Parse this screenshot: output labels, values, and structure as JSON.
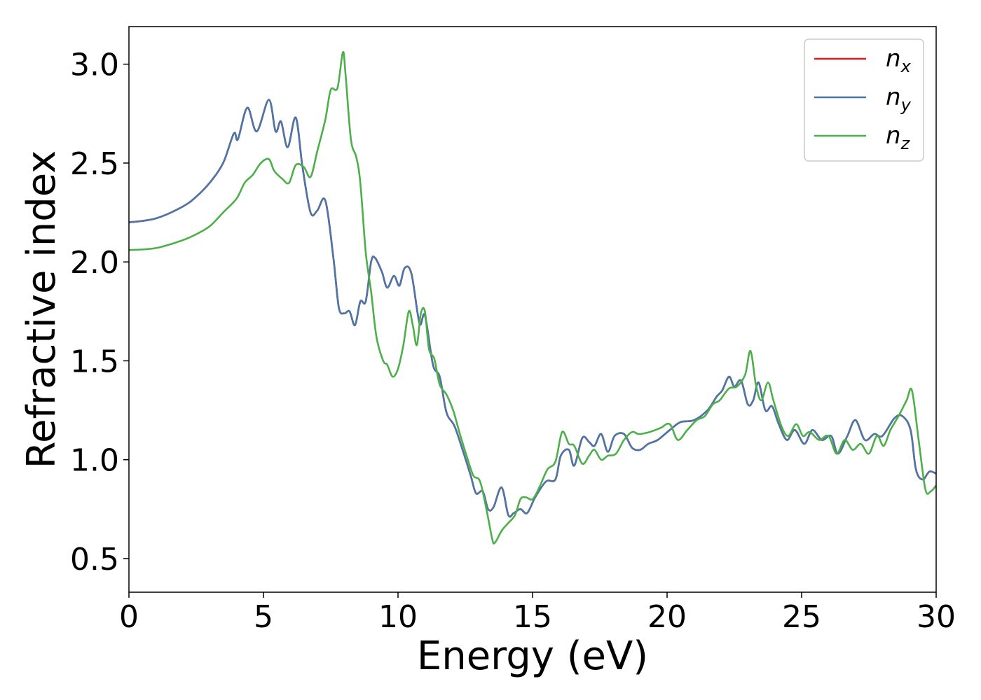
{
  "chart_data": {
    "type": "line",
    "xlabel": "Energy (eV)",
    "ylabel": "Refractive index",
    "xlim": [
      0,
      30
    ],
    "ylim": [
      0.33,
      3.19
    ],
    "xticks": [
      0,
      5,
      10,
      15,
      20,
      25,
      30
    ],
    "yticks": [
      0.5,
      1.0,
      1.5,
      2.0,
      2.5,
      3.0
    ],
    "xtick_labels": [
      "0",
      "5",
      "10",
      "15",
      "20",
      "25",
      "30"
    ],
    "ytick_labels": [
      "0.5",
      "1.0",
      "1.5",
      "2.0",
      "2.5",
      "3.0"
    ],
    "grid": false,
    "legend_position": "top-right",
    "series": [
      {
        "name": "nx",
        "label_base": "n",
        "label_sub": "x",
        "color": "#e41a1c",
        "x": [
          0,
          1,
          2,
          2.5,
          3,
          3.5,
          3.9,
          4.05,
          4.4,
          4.75,
          5.2,
          5.45,
          5.65,
          5.9,
          6.2,
          6.45,
          6.75,
          7.0,
          7.3,
          7.6,
          7.8,
          8.0,
          8.2,
          8.4,
          8.6,
          8.8,
          9.0,
          9.15,
          9.4,
          9.6,
          9.85,
          10.05,
          10.25,
          10.5,
          10.8,
          11.0,
          11.3,
          11.55,
          11.8,
          12.1,
          12.4,
          12.7,
          12.9,
          13.15,
          13.35,
          13.55,
          13.85,
          14.1,
          14.3,
          14.55,
          14.8,
          15.1,
          15.5,
          15.85,
          16.05,
          16.35,
          16.55,
          16.85,
          17.1,
          17.3,
          17.55,
          17.8,
          18.05,
          18.4,
          18.7,
          19.0,
          19.3,
          19.65,
          20.1,
          20.5,
          21.0,
          21.5,
          21.85,
          22.05,
          22.3,
          22.5,
          22.75,
          23.0,
          23.2,
          23.4,
          23.65,
          23.9,
          24.15,
          24.45,
          24.75,
          25.1,
          25.4,
          25.75,
          26.1,
          26.35,
          26.7,
          27.0,
          27.35,
          27.7,
          28.0,
          28.45,
          28.75,
          29.05,
          29.25,
          29.5,
          29.75,
          30
        ],
        "y": [
          2.2,
          2.22,
          2.28,
          2.33,
          2.4,
          2.5,
          2.65,
          2.62,
          2.78,
          2.66,
          2.82,
          2.66,
          2.71,
          2.58,
          2.73,
          2.48,
          2.25,
          2.26,
          2.31,
          2.02,
          1.77,
          1.74,
          1.75,
          1.68,
          1.8,
          1.8,
          2.0,
          2.02,
          1.95,
          1.87,
          1.93,
          1.88,
          1.97,
          1.94,
          1.69,
          1.73,
          1.48,
          1.42,
          1.24,
          1.17,
          1.05,
          0.92,
          0.83,
          0.84,
          0.75,
          0.76,
          0.86,
          0.72,
          0.73,
          0.75,
          0.73,
          0.81,
          0.89,
          0.9,
          1.02,
          1.05,
          0.97,
          1.11,
          1.09,
          1.07,
          1.13,
          1.04,
          1.12,
          1.13,
          1.06,
          1.05,
          1.08,
          1.1,
          1.15,
          1.19,
          1.2,
          1.25,
          1.32,
          1.35,
          1.42,
          1.37,
          1.4,
          1.28,
          1.3,
          1.39,
          1.25,
          1.27,
          1.18,
          1.1,
          1.15,
          1.08,
          1.15,
          1.1,
          1.12,
          1.03,
          1.12,
          1.2,
          1.1,
          1.13,
          1.12,
          1.21,
          1.22,
          1.15,
          0.95,
          0.9,
          0.94,
          0.93
        ]
      },
      {
        "name": "ny",
        "label_base": "n",
        "label_sub": "y",
        "color": "#4a76a8",
        "x": [
          0,
          1,
          2,
          2.5,
          3,
          3.5,
          3.9,
          4.05,
          4.4,
          4.75,
          5.2,
          5.45,
          5.65,
          5.9,
          6.2,
          6.45,
          6.75,
          7.0,
          7.3,
          7.6,
          7.8,
          8.0,
          8.2,
          8.4,
          8.6,
          8.8,
          9.0,
          9.15,
          9.4,
          9.6,
          9.85,
          10.05,
          10.25,
          10.5,
          10.8,
          11.0,
          11.3,
          11.55,
          11.8,
          12.1,
          12.4,
          12.7,
          12.9,
          13.15,
          13.35,
          13.55,
          13.85,
          14.1,
          14.3,
          14.55,
          14.8,
          15.1,
          15.5,
          15.85,
          16.05,
          16.35,
          16.55,
          16.85,
          17.1,
          17.3,
          17.55,
          17.8,
          18.05,
          18.4,
          18.7,
          19.0,
          19.3,
          19.65,
          20.1,
          20.5,
          21.0,
          21.5,
          21.85,
          22.05,
          22.3,
          22.5,
          22.75,
          23.0,
          23.2,
          23.4,
          23.65,
          23.9,
          24.15,
          24.45,
          24.75,
          25.1,
          25.4,
          25.75,
          26.1,
          26.35,
          26.7,
          27.0,
          27.35,
          27.7,
          28.0,
          28.45,
          28.75,
          29.05,
          29.25,
          29.5,
          29.75,
          30
        ],
        "y": [
          2.2,
          2.22,
          2.28,
          2.33,
          2.4,
          2.5,
          2.65,
          2.62,
          2.78,
          2.66,
          2.82,
          2.66,
          2.71,
          2.58,
          2.73,
          2.48,
          2.25,
          2.26,
          2.31,
          2.02,
          1.77,
          1.74,
          1.75,
          1.68,
          1.8,
          1.8,
          2.0,
          2.02,
          1.95,
          1.87,
          1.93,
          1.88,
          1.97,
          1.94,
          1.69,
          1.73,
          1.48,
          1.42,
          1.24,
          1.17,
          1.05,
          0.92,
          0.83,
          0.84,
          0.75,
          0.76,
          0.86,
          0.72,
          0.73,
          0.75,
          0.73,
          0.81,
          0.89,
          0.9,
          1.02,
          1.05,
          0.97,
          1.11,
          1.09,
          1.07,
          1.13,
          1.04,
          1.12,
          1.13,
          1.06,
          1.05,
          1.08,
          1.1,
          1.15,
          1.19,
          1.2,
          1.25,
          1.32,
          1.35,
          1.42,
          1.37,
          1.4,
          1.28,
          1.3,
          1.39,
          1.25,
          1.27,
          1.18,
          1.1,
          1.15,
          1.08,
          1.15,
          1.1,
          1.12,
          1.03,
          1.12,
          1.2,
          1.1,
          1.13,
          1.12,
          1.21,
          1.22,
          1.15,
          0.95,
          0.9,
          0.94,
          0.93
        ]
      },
      {
        "name": "nz",
        "label_base": "n",
        "label_sub": "z",
        "color": "#4daf4a",
        "x": [
          0,
          1,
          2,
          2.5,
          3,
          3.5,
          4.0,
          4.3,
          4.6,
          4.9,
          5.2,
          5.4,
          5.7,
          5.95,
          6.2,
          6.5,
          6.75,
          7.0,
          7.3,
          7.5,
          7.75,
          7.95,
          8.05,
          8.25,
          8.45,
          8.6,
          8.8,
          9.0,
          9.2,
          9.45,
          9.6,
          9.8,
          10.0,
          10.2,
          10.4,
          10.55,
          10.7,
          10.85,
          11.0,
          11.15,
          11.35,
          11.55,
          11.8,
          12.05,
          12.3,
          12.55,
          12.8,
          13.05,
          13.3,
          13.5,
          13.6,
          13.85,
          14.1,
          14.35,
          14.55,
          14.75,
          15.0,
          15.25,
          15.55,
          15.85,
          16.1,
          16.35,
          16.55,
          16.85,
          17.1,
          17.3,
          17.55,
          17.8,
          18.1,
          18.4,
          18.7,
          18.95,
          19.35,
          19.75,
          20.1,
          20.4,
          20.75,
          21.1,
          21.4,
          21.7,
          21.95,
          22.3,
          22.6,
          22.9,
          23.1,
          23.3,
          23.5,
          23.75,
          23.95,
          24.25,
          24.5,
          24.8,
          25.05,
          25.3,
          25.65,
          26.0,
          26.3,
          26.6,
          26.9,
          27.2,
          27.5,
          27.8,
          28.05,
          28.3,
          28.6,
          28.9,
          29.1,
          29.35,
          29.6,
          29.8,
          30
        ],
        "y": [
          2.06,
          2.07,
          2.11,
          2.14,
          2.18,
          2.25,
          2.32,
          2.4,
          2.44,
          2.5,
          2.52,
          2.46,
          2.42,
          2.4,
          2.49,
          2.48,
          2.43,
          2.56,
          2.72,
          2.87,
          2.88,
          3.06,
          2.95,
          2.62,
          2.53,
          2.4,
          2.05,
          1.85,
          1.62,
          1.5,
          1.48,
          1.42,
          1.46,
          1.58,
          1.75,
          1.68,
          1.58,
          1.74,
          1.75,
          1.56,
          1.51,
          1.38,
          1.33,
          1.25,
          1.13,
          1.02,
          0.92,
          0.89,
          0.74,
          0.6,
          0.58,
          0.64,
          0.68,
          0.72,
          0.8,
          0.81,
          0.8,
          0.86,
          0.95,
          0.99,
          1.14,
          1.08,
          1.07,
          0.98,
          1.02,
          1.05,
          1.0,
          1.02,
          1.03,
          1.1,
          1.14,
          1.13,
          1.14,
          1.16,
          1.18,
          1.1,
          1.15,
          1.2,
          1.22,
          1.28,
          1.3,
          1.36,
          1.37,
          1.43,
          1.55,
          1.38,
          1.3,
          1.39,
          1.3,
          1.17,
          1.12,
          1.18,
          1.12,
          1.14,
          1.1,
          1.12,
          1.03,
          1.1,
          1.05,
          1.08,
          1.03,
          1.12,
          1.07,
          1.15,
          1.22,
          1.3,
          1.35,
          1.1,
          0.85,
          0.84,
          0.87
        ]
      }
    ]
  }
}
